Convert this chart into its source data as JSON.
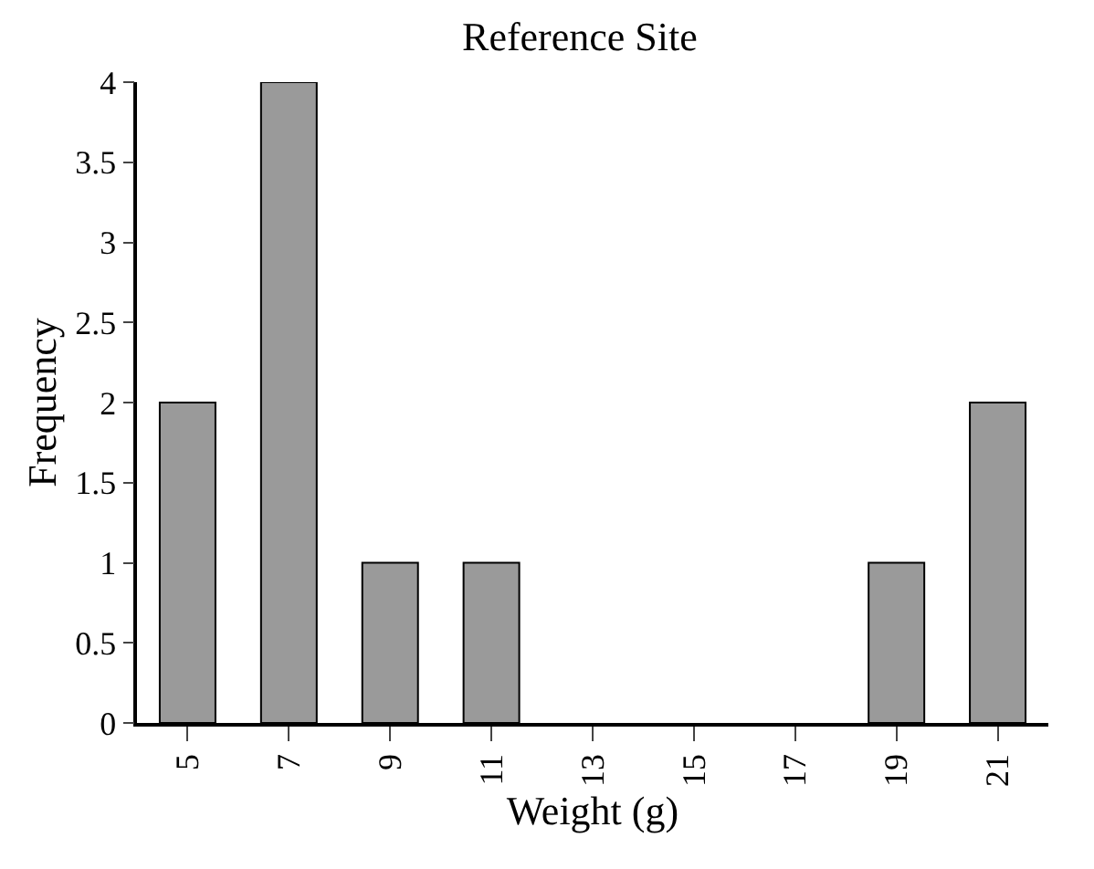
{
  "chart_data": {
    "type": "bar",
    "title": "Reference Site",
    "xlabel": "Weight (g)",
    "ylabel": "Frequency",
    "categories": [
      "5",
      "7",
      "9",
      "11",
      "13",
      "15",
      "17",
      "19",
      "21"
    ],
    "values": [
      2,
      4,
      1,
      1,
      0,
      0,
      0,
      1,
      2
    ],
    "color": "#9a9a9a",
    "ylim": [
      0,
      4
    ],
    "yticks": [
      0,
      0.5,
      1,
      1.5,
      2,
      2.5,
      3,
      3.5,
      4
    ],
    "legend": false
  }
}
